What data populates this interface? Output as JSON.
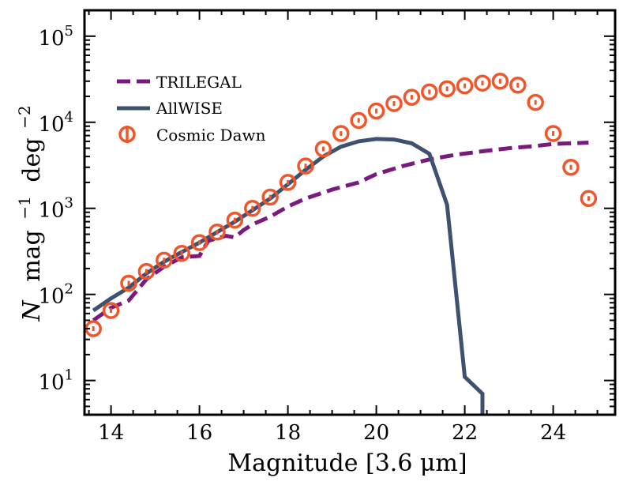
{
  "chart_data": {
    "type": "line",
    "xlabel": "Magnitude [3.6 μm]",
    "ylabel": "N  mag −1 deg−2",
    "ylabel_parts": {
      "var": "N",
      "mag": "mag",
      "mag_exp": "−1",
      "deg": "deg",
      "deg_exp": "−2"
    },
    "xlim": [
      13.4,
      25.4
    ],
    "ylim": [
      4,
      200000
    ],
    "yscale": "log",
    "xticks": [
      14,
      16,
      18,
      20,
      22,
      24
    ],
    "xtick_labels": [
      "14",
      "16",
      "18",
      "20",
      "22",
      "24"
    ],
    "yticks": [
      10,
      100,
      1000,
      10000,
      100000
    ],
    "ytick_labels": [
      {
        "base": "10",
        "exp": "1"
      },
      {
        "base": "10",
        "exp": "2"
      },
      {
        "base": "10",
        "exp": "3"
      },
      {
        "base": "10",
        "exp": "4"
      },
      {
        "base": "10",
        "exp": "5"
      }
    ],
    "grid": false,
    "legend_position": "upper-left",
    "series": [
      {
        "name": "TRILEGAL",
        "style": "dashed",
        "color": "#7a1a7f",
        "x": [
          13.6,
          14.0,
          14.4,
          14.8,
          15.2,
          15.6,
          16.0,
          16.2,
          16.6,
          16.8,
          17.0,
          17.2,
          17.6,
          18.0,
          18.4,
          19.0,
          19.6,
          20.0,
          20.6,
          21.2,
          21.8,
          22.4,
          23.0,
          23.6,
          24.0,
          24.4,
          24.8
        ],
        "y": [
          50,
          70,
          85,
          150,
          210,
          270,
          280,
          420,
          480,
          460,
          560,
          650,
          800,
          1050,
          1300,
          1650,
          2000,
          2500,
          3100,
          3700,
          4200,
          4600,
          5000,
          5300,
          5600,
          5700,
          5800
        ]
      },
      {
        "name": "AllWISE",
        "style": "solid",
        "color": "#3d5170",
        "x": [
          13.6,
          14.0,
          14.4,
          14.8,
          15.2,
          15.6,
          16.0,
          16.4,
          16.8,
          17.2,
          17.6,
          18.0,
          18.4,
          18.8,
          19.2,
          19.6,
          20.0,
          20.4,
          20.8,
          21.2,
          21.6,
          22.0,
          22.4,
          22.4
        ],
        "y": [
          65,
          90,
          120,
          175,
          240,
          310,
          400,
          530,
          700,
          950,
          1300,
          1900,
          2800,
          4000,
          5200,
          6000,
          6400,
          6300,
          5700,
          4300,
          1100,
          11,
          7,
          4
        ]
      },
      {
        "name": "Cosmic Dawn",
        "style": "markers",
        "color": "#f0562a",
        "x": [
          13.6,
          14.0,
          14.4,
          14.8,
          15.2,
          15.6,
          16.0,
          16.4,
          16.8,
          17.2,
          17.6,
          18.0,
          18.4,
          18.8,
          19.2,
          19.6,
          20.0,
          20.4,
          20.8,
          21.2,
          21.6,
          22.0,
          22.4,
          22.8,
          23.2,
          23.6,
          24.0,
          24.4,
          24.8
        ],
        "y": [
          40,
          65,
          135,
          185,
          250,
          300,
          400,
          530,
          730,
          1000,
          1350,
          2000,
          3100,
          4900,
          7400,
          10500,
          13500,
          16500,
          19500,
          22500,
          24500,
          26500,
          28500,
          30000,
          27000,
          17000,
          7400,
          3000,
          1300
        ]
      }
    ]
  }
}
